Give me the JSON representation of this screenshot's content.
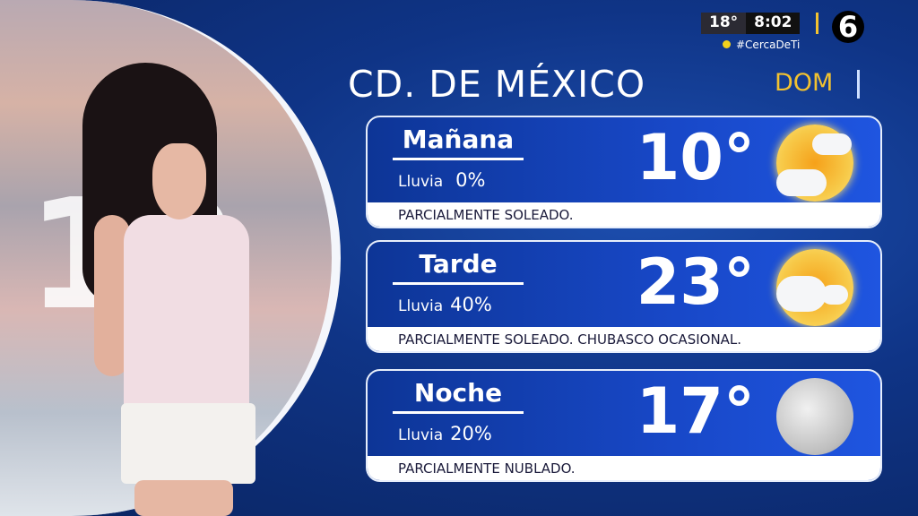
{
  "hud": {
    "temperature": "18°",
    "time": "8:02",
    "hashtag": "#CercaDeTi",
    "channel_logo": "6"
  },
  "header": {
    "city": "CD. DE MÉXICO",
    "day": "DOM"
  },
  "background_number": "12",
  "forecast": [
    {
      "period": "Mañana",
      "rain_label": "Lluvia",
      "rain": "0%",
      "temp": "10°",
      "icon": "partly-sunny-icon",
      "condition": "PARCIALMENTE SOLEADO."
    },
    {
      "period": "Tarde",
      "rain_label": "Lluvia",
      "rain": "40%",
      "temp": "23°",
      "icon": "sun-showers-icon",
      "condition": "PARCIALMENTE SOLEADO. CHUBASCO OCASIONAL."
    },
    {
      "period": "Noche",
      "rain_label": "Lluvia",
      "rain": "20%",
      "temp": "17°",
      "icon": "moon-icon",
      "condition": "PARCIALMENTE NUBLADO."
    }
  ],
  "colors": {
    "accent": "#f2c230",
    "card": "#1848c8",
    "background": "#0f3486"
  }
}
